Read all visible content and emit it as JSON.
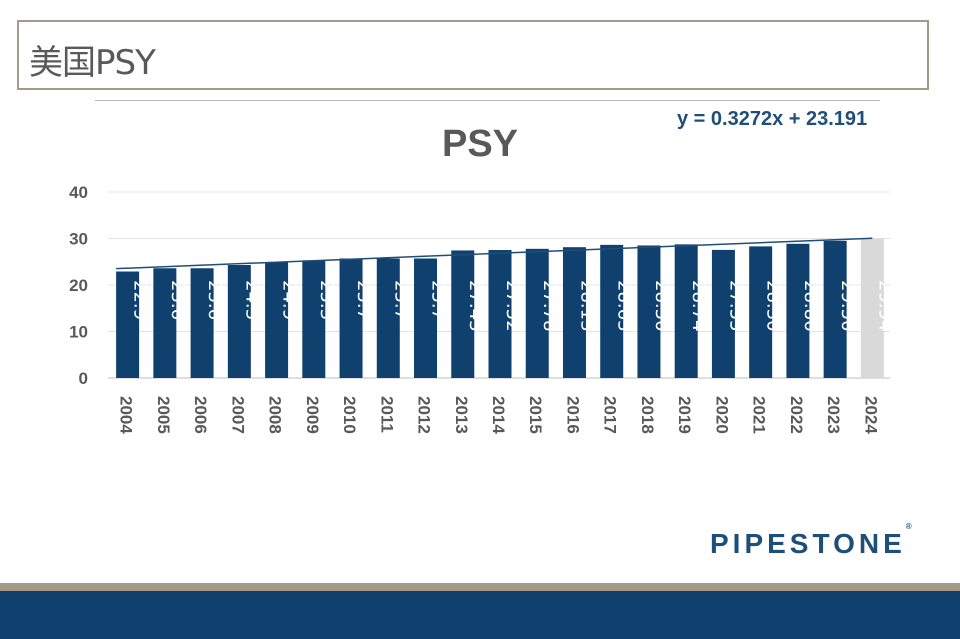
{
  "slide": {
    "title": "美国PSY",
    "logo": "PIPESTONE",
    "logo_mark": "®"
  },
  "colors": {
    "bar_actual": "#0f406e",
    "bar_projected": "#d9d9d9",
    "trendline": "#1f4e79",
    "band_tan": "#a59a88",
    "band_navy": "#0f406e"
  },
  "chart_data": {
    "type": "bar",
    "title": "PSY",
    "categories": [
      "2004",
      "2005",
      "2006",
      "2007",
      "2008",
      "2009",
      "2010",
      "2011",
      "2012",
      "2013",
      "2014",
      "2015",
      "2016",
      "2017",
      "2018",
      "2019",
      "2020",
      "2021",
      "2022",
      "2023",
      "2024"
    ],
    "values": [
      22.9,
      23.6,
      23.6,
      24.3,
      24.9,
      25.3,
      25.7,
      25.7,
      25.7,
      27.43,
      27.52,
      27.78,
      28.13,
      28.63,
      28.5,
      28.74,
      27.55,
      28.3,
      28.86,
      29.5,
      29.94
    ],
    "data_labels": [
      "22.9",
      "23.6",
      "23.6",
      "24.3",
      "24.9",
      "25.3",
      "25.7",
      "25.7",
      "25.7",
      "27.43",
      "27.52",
      "27.78",
      "28.13",
      "28.63",
      "28.50",
      "28.74",
      "27.55",
      "28.30",
      "28.86",
      "29.50",
      "29.94"
    ],
    "projected_index": 20,
    "ylim": [
      0,
      40
    ],
    "yticks": [
      0,
      10,
      20,
      30,
      40
    ],
    "grid": true,
    "trendline": {
      "equation": "y = 0.3272x + 23.191",
      "slope": 0.3272,
      "intercept": 23.191
    }
  }
}
